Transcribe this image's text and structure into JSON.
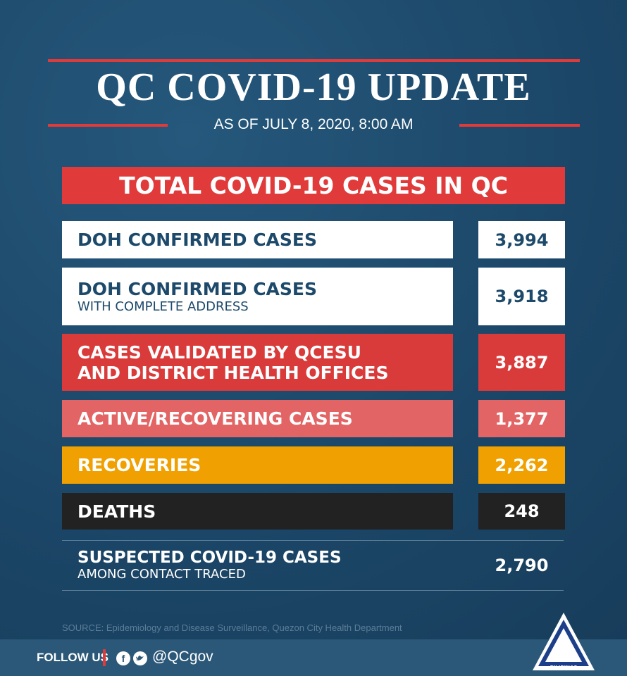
{
  "header": {
    "title": "QC COVID-19 UPDATE",
    "subtitle": "AS OF JULY 8, 2020, 8:00 AM"
  },
  "section_title": "TOTAL COVID-19 CASES IN QC",
  "rows": [
    {
      "label": "DOH CONFIRMED CASES",
      "value": "3,994"
    },
    {
      "label": "DOH CONFIRMED CASES",
      "sublabel": "WITH COMPLETE ADDRESS",
      "value": "3,918"
    },
    {
      "label": "CASES VALIDATED BY QCESU",
      "label2": "AND DISTRICT HEALTH OFFICES",
      "value": "3,887"
    },
    {
      "label": "ACTIVE/RECOVERING CASES",
      "value": "1,377"
    },
    {
      "label": "RECOVERIES",
      "value": "2,262"
    },
    {
      "label": "DEATHS",
      "value": "248"
    },
    {
      "label": "SUSPECTED COVID-19 CASES",
      "sublabel": "AMONG CONTACT TRACED",
      "value": "2,790"
    }
  ],
  "source": "SOURCE: Epidemiology and Disease Surveillance, Quezon City Health Department",
  "footer": {
    "follow": "FOLLOW US",
    "handle": "@QCgov",
    "logo_text": "PILIPINAS"
  }
}
